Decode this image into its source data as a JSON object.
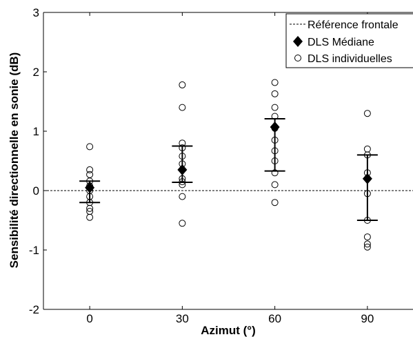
{
  "chart_data": {
    "type": "scatter",
    "xlabel": "Azimut (°)",
    "ylabel": "Sensibilité directionnelle en sonie (dB)",
    "ylim": [
      -2,
      3
    ],
    "xlim": [
      -15,
      105
    ],
    "x_ticks": [
      0,
      30,
      60,
      90
    ],
    "y_ticks": [
      -2,
      -1,
      0,
      1,
      2,
      3
    ],
    "grid": false,
    "legend_position": "top-right",
    "reference_line": {
      "name": "Référence frontale",
      "y": 0,
      "style": "dashed"
    },
    "median": {
      "name": "DLS Médiane",
      "points": [
        {
          "x": 0,
          "y": 0.05,
          "low": -0.2,
          "high": 0.16
        },
        {
          "x": 30,
          "y": 0.35,
          "low": 0.14,
          "high": 0.75
        },
        {
          "x": 60,
          "y": 1.07,
          "low": 0.33,
          "high": 1.21
        },
        {
          "x": 90,
          "y": 0.2,
          "low": -0.5,
          "high": 0.6
        }
      ]
    },
    "individual": {
      "name": "DLS individuelles",
      "points": [
        {
          "x": 0,
          "y": 0.74
        },
        {
          "x": 0,
          "y": 0.35
        },
        {
          "x": 0,
          "y": 0.27
        },
        {
          "x": 0,
          "y": 0.16
        },
        {
          "x": 0,
          "y": 0.08
        },
        {
          "x": 0,
          "y": 0.0
        },
        {
          "x": 0,
          "y": -0.1
        },
        {
          "x": 0,
          "y": -0.2
        },
        {
          "x": 0,
          "y": -0.3
        },
        {
          "x": 0,
          "y": -0.35
        },
        {
          "x": 0,
          "y": -0.45
        },
        {
          "x": 30,
          "y": 1.78
        },
        {
          "x": 30,
          "y": 1.4
        },
        {
          "x": 30,
          "y": 0.8
        },
        {
          "x": 30,
          "y": 0.72
        },
        {
          "x": 30,
          "y": 0.58
        },
        {
          "x": 30,
          "y": 0.45
        },
        {
          "x": 30,
          "y": 0.2
        },
        {
          "x": 30,
          "y": 0.15
        },
        {
          "x": 30,
          "y": 0.1
        },
        {
          "x": 30,
          "y": -0.1
        },
        {
          "x": 30,
          "y": -0.55
        },
        {
          "x": 60,
          "y": 1.82
        },
        {
          "x": 60,
          "y": 1.63
        },
        {
          "x": 60,
          "y": 1.4
        },
        {
          "x": 60,
          "y": 1.25
        },
        {
          "x": 60,
          "y": 1.05
        },
        {
          "x": 60,
          "y": 0.85
        },
        {
          "x": 60,
          "y": 0.67
        },
        {
          "x": 60,
          "y": 0.5
        },
        {
          "x": 60,
          "y": 0.3
        },
        {
          "x": 60,
          "y": 0.1
        },
        {
          "x": 60,
          "y": -0.2
        },
        {
          "x": 90,
          "y": 1.3
        },
        {
          "x": 90,
          "y": 0.7
        },
        {
          "x": 90,
          "y": 0.6
        },
        {
          "x": 90,
          "y": 0.3
        },
        {
          "x": 90,
          "y": 0.2
        },
        {
          "x": 90,
          "y": -0.05
        },
        {
          "x": 90,
          "y": -0.5
        },
        {
          "x": 90,
          "y": -0.78
        },
        {
          "x": 90,
          "y": -0.9
        },
        {
          "x": 90,
          "y": -0.95
        }
      ]
    }
  }
}
